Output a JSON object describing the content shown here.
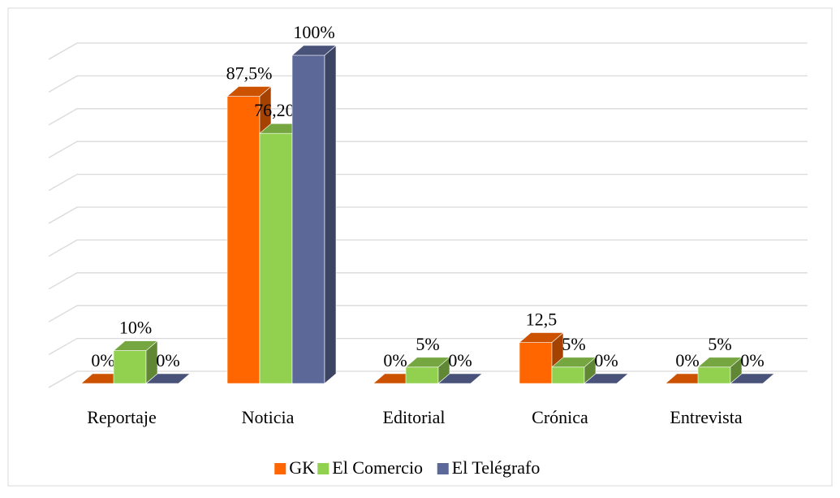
{
  "chart_data": {
    "type": "bar3d",
    "categories": [
      "Reportaje",
      "Noticia",
      "Editorial",
      "Crónica",
      "Entrevista"
    ],
    "series": [
      {
        "name": "GK",
        "color": "#ff6600",
        "values": [
          0,
          87.5,
          0,
          12.5,
          0
        ],
        "value_labels": [
          "0%",
          "87,5%",
          "0%",
          "12,5",
          "0%"
        ]
      },
      {
        "name": "El Comercio",
        "color": "#92d050",
        "values": [
          10,
          76.2,
          5,
          5,
          5
        ],
        "value_labels": [
          "10%",
          "76,20%",
          "5%",
          "5%",
          "5%"
        ]
      },
      {
        "name": "El Telégrafo",
        "color": "#5b6898",
        "values": [
          0,
          100,
          0,
          0,
          0
        ],
        "value_labels": [
          "0%",
          "100%",
          "0%",
          "0%",
          "0%"
        ]
      }
    ],
    "ylim": [
      0,
      100
    ],
    "yticks": [
      0,
      10,
      20,
      30,
      40,
      50,
      60,
      70,
      80,
      90,
      100
    ],
    "grid": true,
    "legend": "bottom"
  }
}
